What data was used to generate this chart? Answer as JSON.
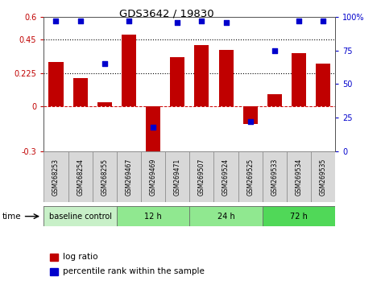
{
  "title": "GDS3642 / 19830",
  "samples": [
    "GSM268253",
    "GSM268254",
    "GSM268255",
    "GSM269467",
    "GSM269469",
    "GSM269471",
    "GSM269507",
    "GSM269524",
    "GSM269525",
    "GSM269533",
    "GSM269534",
    "GSM269535"
  ],
  "log_ratio": [
    0.3,
    0.19,
    0.03,
    0.48,
    -0.37,
    0.33,
    0.41,
    0.38,
    -0.12,
    0.08,
    0.36,
    0.29
  ],
  "percentile_rank": [
    97,
    97,
    65,
    97,
    18,
    96,
    97,
    96,
    22,
    75,
    97,
    97
  ],
  "groups": [
    {
      "label": "baseline control",
      "start": 0,
      "end": 3,
      "color": "#c8f0c8"
    },
    {
      "label": "12 h",
      "start": 3,
      "end": 6,
      "color": "#90e890"
    },
    {
      "label": "24 h",
      "start": 6,
      "end": 9,
      "color": "#90e890"
    },
    {
      "label": "72 h",
      "start": 9,
      "end": 12,
      "color": "#50d858"
    }
  ],
  "bar_color": "#c00000",
  "dot_color": "#0000cc",
  "ylim_left": [
    -0.3,
    0.6
  ],
  "ylim_right": [
    0,
    100
  ],
  "yticks_left": [
    -0.3,
    0,
    0.225,
    0.45,
    0.6
  ],
  "ytick_labels_left": [
    "-0.3",
    "0",
    "0.225",
    "0.45",
    "0.6"
  ],
  "yticks_right": [
    0,
    25,
    50,
    75,
    100
  ],
  "ytick_labels_right": [
    "0",
    "25",
    "50",
    "75",
    "100%"
  ],
  "hlines": [
    0.225,
    0.45
  ],
  "zero_line_color": "#cc0000",
  "background_color": "#ffffff",
  "sample_box_color": "#d8d8d8",
  "time_label": "time",
  "legend_log_ratio": "log ratio",
  "legend_percentile": "percentile rank within the sample"
}
